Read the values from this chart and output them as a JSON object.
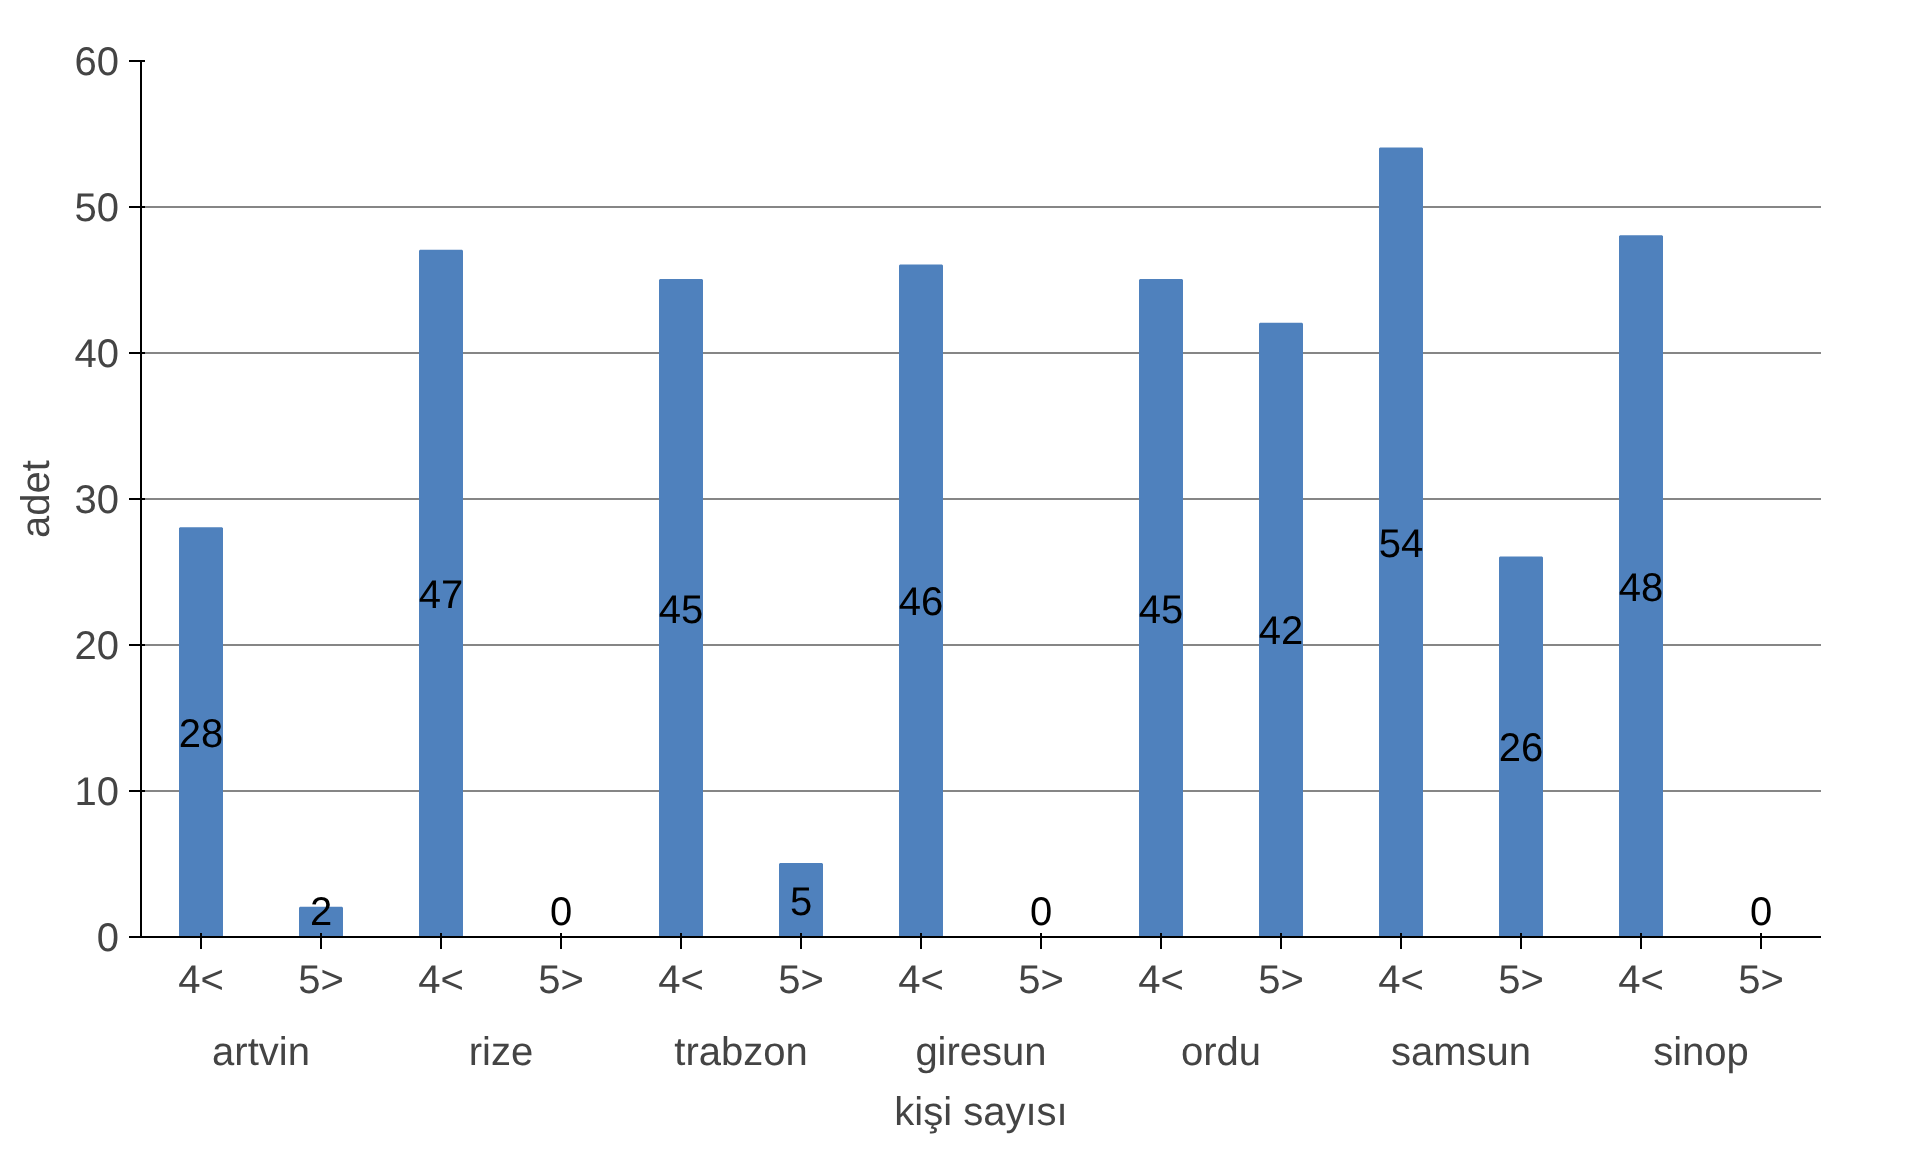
{
  "chart_data": {
    "type": "bar",
    "xlabel": "kişi sayısı",
    "ylabel": "adet",
    "categories": [
      "4<",
      "5>",
      "4<",
      "5>",
      "4<",
      "5>",
      "4<",
      "5>",
      "4<",
      "5>",
      "4<",
      "5>",
      "4<",
      "5>"
    ],
    "annotations": [
      "artvin",
      "rize",
      "trabzon",
      "giresun",
      "ordu",
      "samsun",
      "sinop"
    ],
    "values": [
      28,
      2,
      47,
      0,
      45,
      5,
      46,
      0,
      45,
      42,
      54,
      26,
      48,
      0
    ],
    "color": "#4f81bd",
    "data_labels": true,
    "ylim": [
      0,
      60
    ],
    "yticks": [
      0,
      10,
      20,
      30,
      40,
      50,
      60
    ],
    "grid": "y"
  }
}
